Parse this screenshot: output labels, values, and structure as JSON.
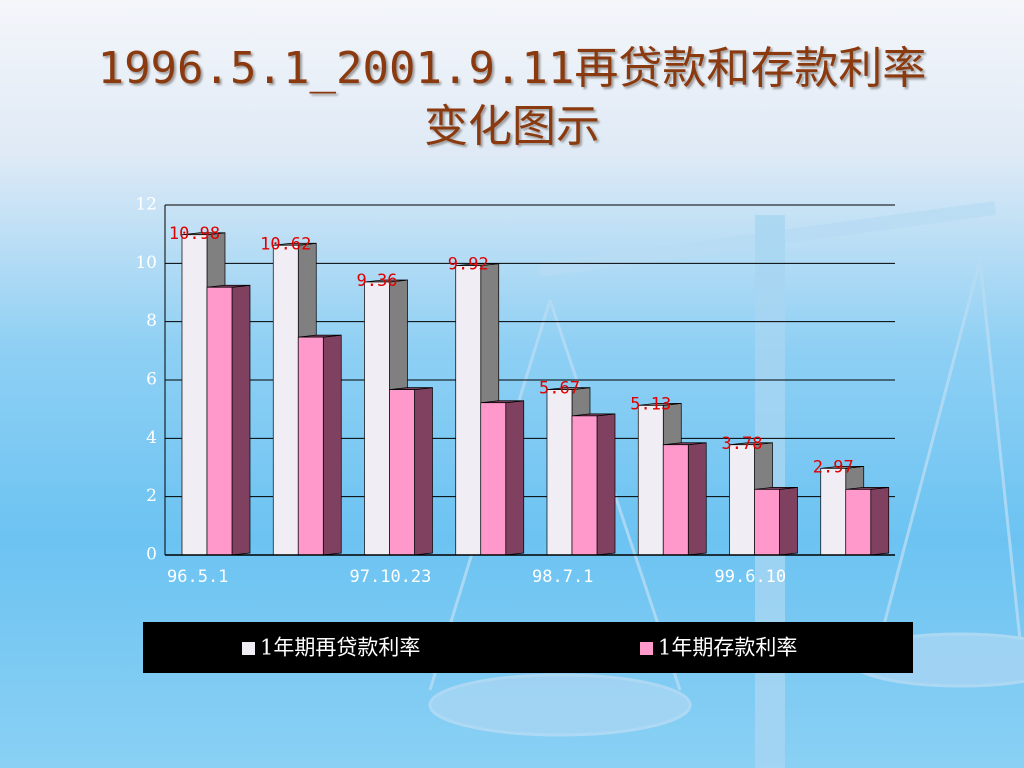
{
  "chart_data": {
    "type": "bar3d",
    "title": [
      "1996.5.1_2001.9.11再贷款和存款利率",
      "变化图示"
    ],
    "categories": [
      "96.5.1",
      null,
      "97.10.23",
      null,
      "98.7.1",
      null,
      "99.6.10",
      null
    ],
    "series": [
      {
        "name": "1年期再贷款利率",
        "color": "#f0eef4",
        "side_color": "#808080",
        "values": [
          10.98,
          10.62,
          9.36,
          9.92,
          5.67,
          5.13,
          3.78,
          2.97
        ],
        "show_labels": true
      },
      {
        "name": "1年期存款利率",
        "color": "#ff99cc",
        "side_color": "#804060",
        "values": [
          9.18,
          7.47,
          5.67,
          5.22,
          4.77,
          3.78,
          2.25,
          2.25
        ],
        "show_labels": false
      }
    ],
    "ylim": [
      0,
      12
    ],
    "yticks": [
      0,
      2,
      4,
      6,
      8,
      10,
      12
    ],
    "grid": true,
    "legend": "bottom",
    "label_color": "#e00000"
  }
}
